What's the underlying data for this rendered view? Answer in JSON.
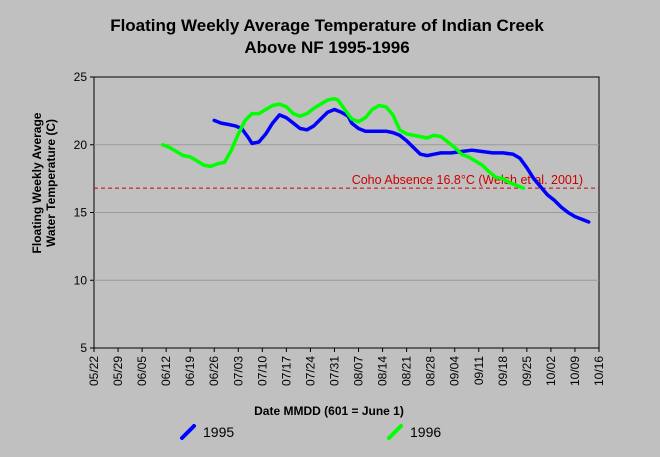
{
  "chart_data": {
    "type": "line",
    "title": [
      "Floating Weekly Average Temperature of Indian Creek",
      "Above NF 1995-1996"
    ],
    "ylabel": [
      "Floating Weekly Average",
      "Water Temperature (C)"
    ],
    "xlabel": "Date MMDD (601 = June 1)",
    "ylim": [
      5,
      25
    ],
    "yticks": [
      "5",
      "10",
      "15",
      "20",
      "25"
    ],
    "grid": true,
    "categories": [
      "05/22",
      "05/29",
      "06/05",
      "06/12",
      "06/19",
      "06/26",
      "07/03",
      "07/10",
      "07/17",
      "07/24",
      "07/31",
      "08/07",
      "08/14",
      "08/21",
      "08/28",
      "09/04",
      "09/11",
      "09/18",
      "09/25",
      "10/02",
      "10/09",
      "10/16"
    ],
    "reference_line": {
      "label": "Coho Absence 16.8°C (Welsh et al. 2001)",
      "value": 16.8,
      "color": "#cc0000"
    },
    "series": [
      {
        "name": "1995",
        "color": "#0000ff",
        "values": [
          [
            35,
            21.8
          ],
          [
            37,
            21.6
          ],
          [
            39,
            21.5
          ],
          [
            41,
            21.4
          ],
          [
            43,
            21.2
          ],
          [
            45,
            20.5
          ],
          [
            46,
            20.1
          ],
          [
            48,
            20.2
          ],
          [
            50,
            20.8
          ],
          [
            52,
            21.6
          ],
          [
            54,
            22.2
          ],
          [
            56,
            22.0
          ],
          [
            58,
            21.6
          ],
          [
            60,
            21.2
          ],
          [
            62,
            21.1
          ],
          [
            64,
            21.4
          ],
          [
            66,
            21.9
          ],
          [
            68,
            22.4
          ],
          [
            70,
            22.6
          ],
          [
            72,
            22.4
          ],
          [
            74,
            22.1
          ],
          [
            75,
            21.6
          ],
          [
            77,
            21.2
          ],
          [
            79,
            21.0
          ],
          [
            82,
            21.0
          ],
          [
            85,
            21.0
          ],
          [
            87,
            20.9
          ],
          [
            89,
            20.7
          ],
          [
            91,
            20.3
          ],
          [
            93,
            19.8
          ],
          [
            95,
            19.3
          ],
          [
            97,
            19.2
          ],
          [
            99,
            19.3
          ],
          [
            101,
            19.4
          ],
          [
            104,
            19.4
          ],
          [
            107,
            19.5
          ],
          [
            110,
            19.6
          ],
          [
            113,
            19.5
          ],
          [
            116,
            19.4
          ],
          [
            119,
            19.4
          ],
          [
            122,
            19.3
          ],
          [
            124,
            19.0
          ],
          [
            126,
            18.3
          ],
          [
            128,
            17.5
          ],
          [
            130,
            16.9
          ],
          [
            132,
            16.3
          ],
          [
            134,
            15.9
          ],
          [
            136,
            15.4
          ],
          [
            138,
            15.0
          ],
          [
            140,
            14.7
          ],
          [
            142,
            14.5
          ],
          [
            144,
            14.3
          ]
        ]
      },
      {
        "name": "1996",
        "color": "#00ff00",
        "values": [
          [
            20,
            20.0
          ],
          [
            22,
            19.8
          ],
          [
            24,
            19.5
          ],
          [
            26,
            19.2
          ],
          [
            28,
            19.1
          ],
          [
            30,
            18.8
          ],
          [
            32,
            18.5
          ],
          [
            34,
            18.4
          ],
          [
            36,
            18.6
          ],
          [
            38,
            18.7
          ],
          [
            40,
            19.6
          ],
          [
            42,
            20.8
          ],
          [
            44,
            21.8
          ],
          [
            46,
            22.3
          ],
          [
            48,
            22.3
          ],
          [
            50,
            22.6
          ],
          [
            52,
            22.9
          ],
          [
            54,
            23.0
          ],
          [
            56,
            22.8
          ],
          [
            58,
            22.3
          ],
          [
            60,
            22.1
          ],
          [
            62,
            22.3
          ],
          [
            64,
            22.7
          ],
          [
            66,
            23.0
          ],
          [
            68,
            23.3
          ],
          [
            70,
            23.4
          ],
          [
            71,
            23.3
          ],
          [
            73,
            22.6
          ],
          [
            75,
            21.9
          ],
          [
            77,
            21.7
          ],
          [
            79,
            22.0
          ],
          [
            81,
            22.6
          ],
          [
            83,
            22.9
          ],
          [
            85,
            22.8
          ],
          [
            87,
            22.2
          ],
          [
            89,
            21.1
          ],
          [
            91,
            20.8
          ],
          [
            93,
            20.7
          ],
          [
            95,
            20.6
          ],
          [
            97,
            20.5
          ],
          [
            99,
            20.7
          ],
          [
            101,
            20.6
          ],
          [
            103,
            20.2
          ],
          [
            105,
            19.8
          ],
          [
            107,
            19.3
          ],
          [
            109,
            19.1
          ],
          [
            111,
            18.8
          ],
          [
            113,
            18.5
          ],
          [
            115,
            18.0
          ],
          [
            117,
            17.6
          ],
          [
            119,
            17.5
          ],
          [
            121,
            17.2
          ],
          [
            123,
            17.0
          ],
          [
            125,
            16.8
          ]
        ]
      }
    ]
  }
}
